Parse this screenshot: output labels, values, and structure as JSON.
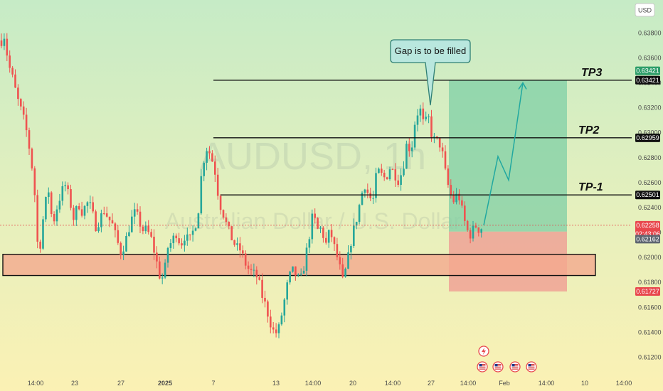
{
  "chart_data": {
    "type": "candlestick",
    "symbol": "AUDUSD",
    "interval": "1h",
    "instrument_name": "Australian Dollar / U.S. Dollar",
    "currency": "USD",
    "y_axis": {
      "ylim": [
        0.611,
        0.6395
      ],
      "ticks": [
        "0.63800",
        "0.63600",
        "0.63400",
        "0.63200",
        "0.63000",
        "0.62800",
        "0.62600",
        "0.62400",
        "0.62200",
        "0.62000",
        "0.61800",
        "0.61600",
        "0.61400",
        "0.61200"
      ]
    },
    "x_axis": {
      "ticks": [
        "14:00",
        "23",
        "27",
        "2025",
        "7",
        "13",
        "14:00",
        "20",
        "14:00",
        "27",
        "14:00",
        "Feb",
        "14:00",
        "10",
        "14:00"
      ]
    },
    "levels": [
      {
        "name": "TP3",
        "label": "TP3",
        "value": 0.63421,
        "value_label": "0.63421"
      },
      {
        "name": "TP2",
        "label": "TP2",
        "value": 0.62959,
        "value_label": "0.62959"
      },
      {
        "name": "TP-1",
        "label": "TP-1",
        "value": 0.62501,
        "value_label": "0.62501"
      }
    ],
    "current_price": {
      "value": 0.62258,
      "label": "0.62258",
      "countdown": "02:43:06"
    },
    "price_badges": [
      {
        "value": 0.63421,
        "label": "0.63421",
        "color": "#2e9e6a"
      },
      {
        "value": 0.62162,
        "label": "0.62162",
        "color": "#5d6570"
      },
      {
        "value": 0.61727,
        "label": "0.61727",
        "color": "#e8474d"
      }
    ],
    "support_zone": {
      "low": 0.61855,
      "high": 0.62025,
      "color": "#f4a98e"
    },
    "position": {
      "entry": 0.62207,
      "target": 0.63421,
      "stop": 0.61727,
      "profit_color": "#7fcfa6",
      "loss_color": "#f08a8a"
    },
    "annotation": {
      "text": "Gap is to be filled"
    },
    "series_anchors": [
      [
        0,
        0.6372
      ],
      [
        6,
        0.6378
      ],
      [
        12,
        0.6355
      ],
      [
        18,
        0.6343
      ],
      [
        24,
        0.6328
      ],
      [
        30,
        0.6317
      ],
      [
        36,
        0.6305
      ],
      [
        42,
        0.6285
      ],
      [
        48,
        0.626
      ],
      [
        52,
        0.6213
      ],
      [
        56,
        0.6208
      ],
      [
        62,
        0.6238
      ],
      [
        68,
        0.6255
      ],
      [
        74,
        0.6226
      ],
      [
        80,
        0.624
      ],
      [
        86,
        0.6252
      ],
      [
        92,
        0.6258
      ],
      [
        98,
        0.6246
      ],
      [
        104,
        0.623
      ],
      [
        110,
        0.6244
      ],
      [
        116,
        0.6236
      ],
      [
        122,
        0.6244
      ],
      [
        128,
        0.624
      ],
      [
        134,
        0.6225
      ],
      [
        140,
        0.623
      ],
      [
        146,
        0.6238
      ],
      [
        152,
        0.6232
      ],
      [
        158,
        0.6226
      ],
      [
        164,
        0.6214
      ],
      [
        170,
        0.6204
      ],
      [
        176,
        0.6212
      ],
      [
        182,
        0.6225
      ],
      [
        188,
        0.6236
      ],
      [
        194,
        0.6232
      ],
      [
        200,
        0.6222
      ],
      [
        206,
        0.6222
      ],
      [
        212,
        0.6216
      ],
      [
        218,
        0.6202
      ],
      [
        224,
        0.6186
      ],
      [
        230,
        0.6183
      ],
      [
        236,
        0.6208
      ],
      [
        242,
        0.6213
      ],
      [
        248,
        0.622
      ],
      [
        254,
        0.621
      ],
      [
        260,
        0.6218
      ],
      [
        266,
        0.6212
      ],
      [
        272,
        0.6222
      ],
      [
        278,
        0.6233
      ],
      [
        284,
        0.6272
      ],
      [
        290,
        0.6288
      ],
      [
        296,
        0.6283
      ],
      [
        302,
        0.627
      ],
      [
        308,
        0.6245
      ],
      [
        314,
        0.6235
      ],
      [
        320,
        0.6223
      ],
      [
        326,
        0.6215
      ],
      [
        332,
        0.6208
      ],
      [
        338,
        0.6206
      ],
      [
        344,
        0.6196
      ],
      [
        350,
        0.619
      ],
      [
        356,
        0.6187
      ],
      [
        362,
        0.6184
      ],
      [
        368,
        0.617
      ],
      [
        374,
        0.616
      ],
      [
        380,
        0.6148
      ],
      [
        386,
        0.6138
      ],
      [
        392,
        0.6143
      ],
      [
        398,
        0.616
      ],
      [
        404,
        0.6178
      ],
      [
        410,
        0.619
      ],
      [
        416,
        0.6186
      ],
      [
        422,
        0.618
      ],
      [
        428,
        0.6195
      ],
      [
        434,
        0.6215
      ],
      [
        440,
        0.6235
      ],
      [
        446,
        0.6222
      ],
      [
        452,
        0.6223
      ],
      [
        458,
        0.621
      ],
      [
        464,
        0.6222
      ],
      [
        470,
        0.6208
      ],
      [
        476,
        0.6196
      ],
      [
        482,
        0.618
      ],
      [
        488,
        0.6195
      ],
      [
        494,
        0.6215
      ],
      [
        500,
        0.6228
      ],
      [
        506,
        0.6244
      ],
      [
        512,
        0.626
      ],
      [
        518,
        0.625
      ],
      [
        524,
        0.6244
      ],
      [
        530,
        0.627
      ],
      [
        536,
        0.6266
      ],
      [
        542,
        0.6263
      ],
      [
        548,
        0.6272
      ],
      [
        554,
        0.6268
      ],
      [
        560,
        0.6262
      ],
      [
        566,
        0.627
      ],
      [
        572,
        0.6292
      ],
      [
        578,
        0.6285
      ],
      [
        584,
        0.6312
      ],
      [
        590,
        0.632
      ],
      [
        596,
        0.6305
      ],
      [
        602,
        0.6313
      ],
      [
        608,
        0.6295
      ],
      [
        614,
        0.6293
      ],
      [
        620,
        0.629
      ],
      [
        626,
        0.6268
      ],
      [
        632,
        0.6252
      ],
      [
        638,
        0.6245
      ],
      [
        644,
        0.6252
      ],
      [
        650,
        0.6236
      ],
      [
        656,
        0.6222
      ],
      [
        662,
        0.6218
      ],
      [
        668,
        0.6226
      ],
      [
        674,
        0.6222
      ],
      [
        680,
        0.6226
      ]
    ],
    "forecast_path": [
      [
        680,
        0.62258
      ],
      [
        700,
        0.6281
      ],
      [
        715,
        0.6262
      ],
      [
        735,
        0.634
      ]
    ],
    "events": [
      {
        "icon": "lightning-icon"
      },
      {
        "icon": "us-flag-icon"
      },
      {
        "icon": "us-flag-icon"
      },
      {
        "icon": "us-flag-icon"
      },
      {
        "icon": "us-flag-icon"
      }
    ]
  }
}
